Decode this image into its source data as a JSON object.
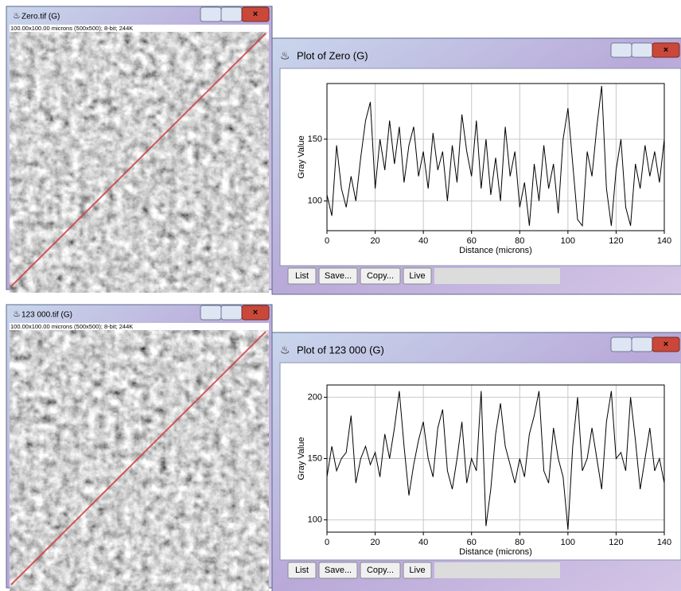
{
  "image_windows": [
    {
      "title": "Zero.tif (G)",
      "info": "100.00x100.00 microns (500x500); 8-bit; 244K"
    },
    {
      "title": "123 000.tif (G)",
      "info": "100.00x100.00 microns (500x500); 8-bit; 244K"
    }
  ],
  "plot_windows": [
    {
      "title": "Plot of Zero (G)",
      "buttons": [
        "List",
        "Save...",
        "Copy...",
        "Live"
      ]
    },
    {
      "title": "Plot of 123 000 (G)",
      "buttons": [
        "List",
        "Save...",
        "Copy...",
        "Live"
      ]
    }
  ],
  "chart_data": [
    {
      "type": "line",
      "x_label": "Distance (microns)",
      "y_label": "Gray Value",
      "color": "#000000",
      "grid": true,
      "x": [
        0,
        2,
        4,
        6,
        8,
        10,
        12,
        14,
        16,
        18,
        20,
        22,
        24,
        26,
        28,
        30,
        32,
        34,
        36,
        38,
        40,
        42,
        44,
        46,
        48,
        50,
        52,
        54,
        56,
        58,
        60,
        62,
        64,
        66,
        68,
        70,
        72,
        74,
        76,
        78,
        80,
        82,
        84,
        86,
        88,
        90,
        92,
        94,
        96,
        98,
        100,
        102,
        104,
        106,
        108,
        110,
        112,
        114,
        116,
        118,
        120,
        122,
        124,
        126,
        128,
        130,
        132,
        134,
        136,
        138,
        140
      ],
      "values": [
        105,
        88,
        145,
        110,
        95,
        120,
        100,
        135,
        165,
        180,
        110,
        150,
        125,
        165,
        130,
        160,
        115,
        145,
        160,
        120,
        140,
        110,
        155,
        125,
        140,
        100,
        145,
        115,
        170,
        140,
        120,
        165,
        110,
        150,
        105,
        135,
        100,
        160,
        120,
        140,
        95,
        115,
        80,
        130,
        100,
        145,
        110,
        130,
        90,
        150,
        175,
        130,
        85,
        80,
        140,
        120,
        160,
        193,
        110,
        80,
        125,
        150,
        95,
        80,
        130,
        110,
        145,
        120,
        140,
        115,
        150
      ],
      "xlim": [
        0,
        140
      ],
      "xticks": [
        0,
        20,
        40,
        60,
        80,
        100,
        120,
        140
      ],
      "ylim": [
        76,
        195
      ],
      "yticks": [
        100,
        150
      ]
    },
    {
      "type": "line",
      "x_label": "Distance (microns)",
      "y_label": "Gray Value",
      "color": "#000000",
      "grid": true,
      "x": [
        0,
        2,
        4,
        6,
        8,
        10,
        12,
        14,
        16,
        18,
        20,
        22,
        24,
        26,
        28,
        30,
        32,
        34,
        36,
        38,
        40,
        42,
        44,
        46,
        48,
        50,
        52,
        54,
        56,
        58,
        60,
        62,
        64,
        66,
        68,
        70,
        72,
        74,
        76,
        78,
        80,
        82,
        84,
        86,
        88,
        90,
        92,
        94,
        96,
        98,
        100,
        102,
        104,
        106,
        108,
        110,
        112,
        114,
        116,
        118,
        120,
        122,
        124,
        126,
        128,
        130,
        132,
        134,
        136,
        138,
        140
      ],
      "values": [
        135,
        160,
        140,
        150,
        155,
        185,
        130,
        150,
        160,
        145,
        155,
        135,
        170,
        150,
        175,
        205,
        160,
        120,
        145,
        165,
        180,
        150,
        135,
        175,
        190,
        140,
        125,
        150,
        180,
        130,
        150,
        140,
        205,
        95,
        125,
        170,
        195,
        160,
        145,
        130,
        150,
        135,
        170,
        185,
        205,
        140,
        130,
        175,
        150,
        135,
        92,
        160,
        200,
        140,
        150,
        175,
        150,
        125,
        180,
        205,
        150,
        155,
        140,
        200,
        165,
        125,
        150,
        175,
        140,
        150,
        130
      ],
      "xlim": [
        0,
        140
      ],
      "xticks": [
        0,
        20,
        40,
        60,
        80,
        100,
        120,
        140
      ],
      "ylim": [
        90,
        210
      ],
      "yticks": [
        100,
        150,
        200
      ]
    }
  ]
}
